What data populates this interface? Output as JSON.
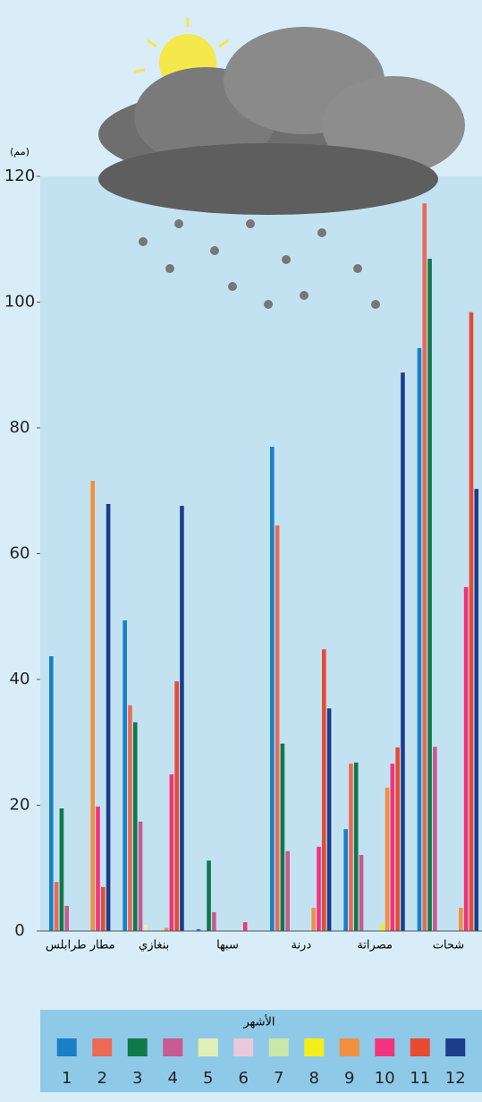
{
  "chart_data": {
    "type": "bar",
    "y_label": "(مم)",
    "legend_title": "الأشهر",
    "categories": [
      "مطار طرابلس",
      "بنغازي",
      "سبها",
      "درنة",
      "مصراتة",
      "شحات"
    ],
    "ylim": [
      0,
      120
    ],
    "yticks": [
      0,
      20,
      40,
      60,
      80,
      100,
      120
    ],
    "series": [
      {
        "name": "1",
        "color": "#1a80c6",
        "values": [
          43.7,
          49.4,
          0.3,
          77,
          16.2,
          92.7
        ]
      },
      {
        "name": "2",
        "color": "#ea6a55",
        "values": [
          7.8,
          35.9,
          0,
          64.5,
          26.6,
          115.7
        ]
      },
      {
        "name": "3",
        "color": "#10794a",
        "values": [
          19.5,
          33.2,
          11.2,
          29.8,
          26.8,
          106.9
        ]
      },
      {
        "name": "4",
        "color": "#c85a92",
        "values": [
          4,
          17.4,
          3,
          12.7,
          12.1,
          29.3
        ]
      },
      {
        "name": "5",
        "color": "#e2efb4",
        "values": [
          0,
          1,
          0,
          0,
          0,
          0
        ]
      },
      {
        "name": "6",
        "color": "#ecc8dc",
        "values": [
          0,
          0,
          0,
          0,
          0,
          0
        ]
      },
      {
        "name": "7",
        "color": "#cbe8ab",
        "values": [
          0,
          0,
          0,
          0,
          0,
          0
        ]
      },
      {
        "name": "8",
        "color": "#f2ef1c",
        "values": [
          0,
          0,
          0,
          0,
          1,
          0
        ]
      },
      {
        "name": "9",
        "color": "#f29040",
        "values": [
          71.6,
          0.5,
          0,
          3.7,
          22.8,
          3.7
        ]
      },
      {
        "name": "10",
        "color": "#f2347c",
        "values": [
          19.8,
          24.9,
          1.4,
          13.4,
          26.6,
          54.7
        ]
      },
      {
        "name": "11",
        "color": "#e84a32",
        "values": [
          7,
          39.7,
          0,
          44.8,
          29.2,
          98.4
        ]
      },
      {
        "name": "12",
        "color": "#1c3c8c",
        "values": [
          67.9,
          67.6,
          0,
          35.4,
          88.8,
          70.3
        ]
      }
    ]
  }
}
